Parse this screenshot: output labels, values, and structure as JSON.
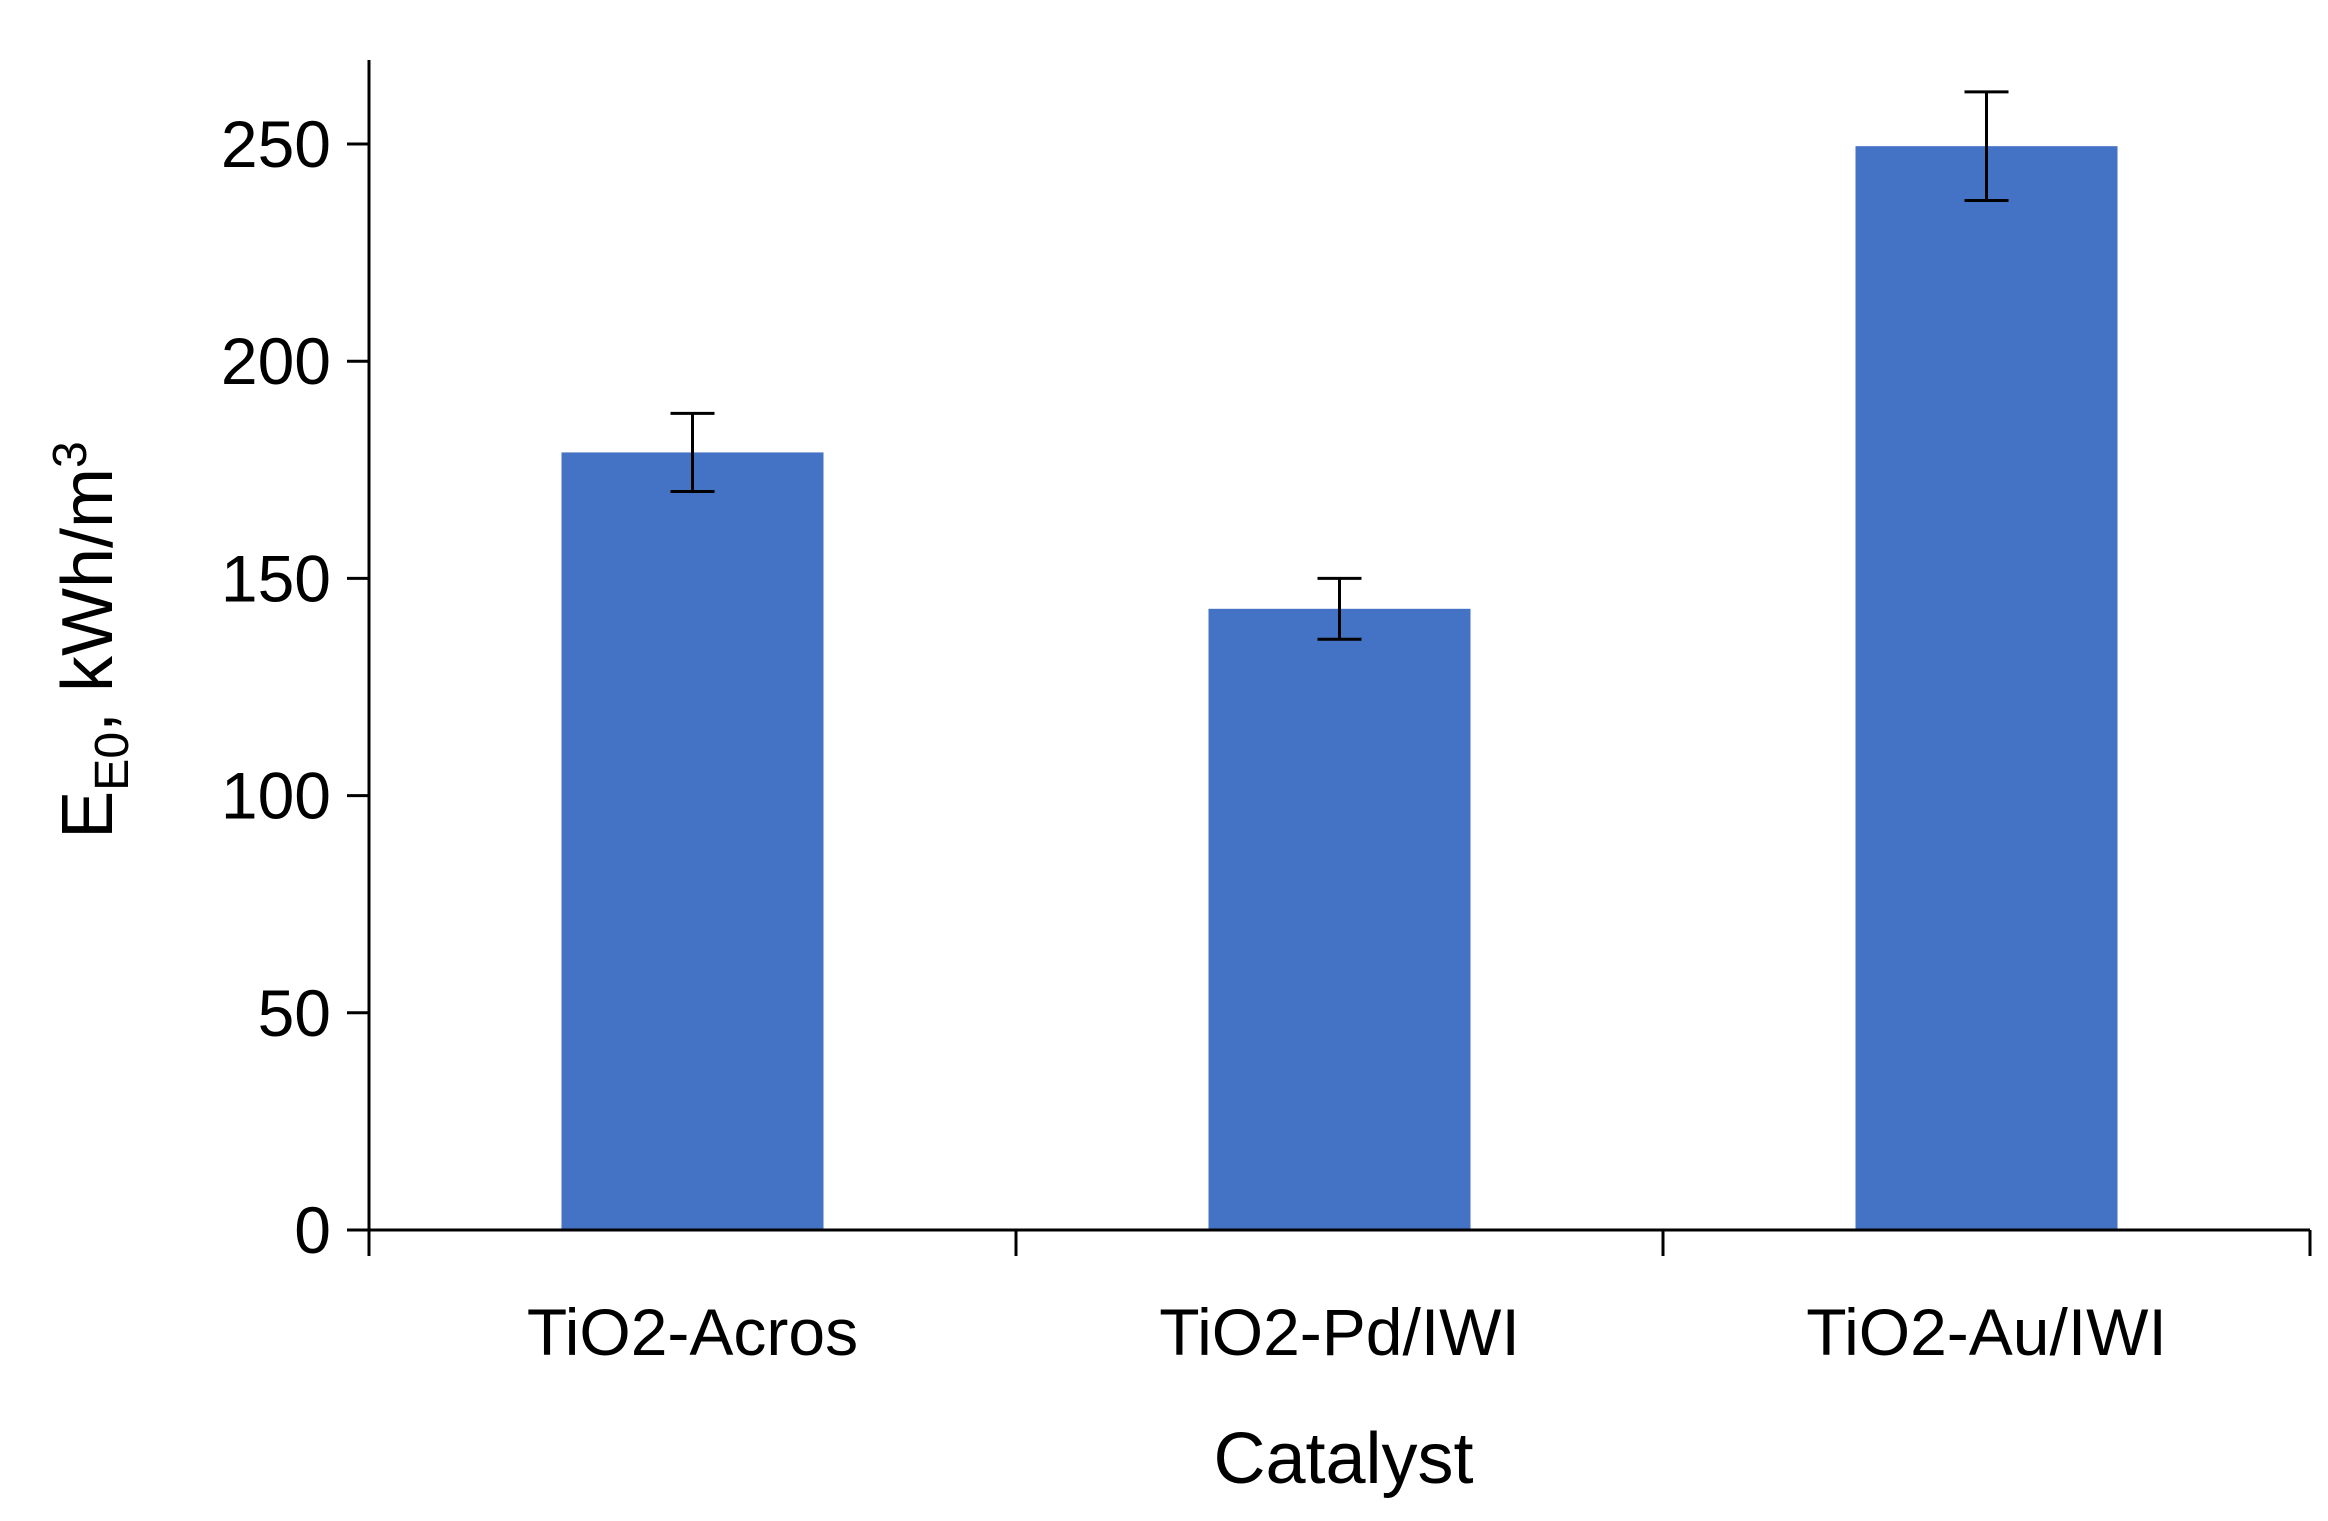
{
  "chart_data": {
    "type": "bar",
    "title": "",
    "xlabel": "Catalyst",
    "ylabel": {
      "main": "E",
      "subscript": "E0",
      "unit": ", kWh/m",
      "superscript": "3"
    },
    "categories": [
      "TiO2-Acros",
      "TiO2-Pd/IWI",
      "TiO2-Au/IWI"
    ],
    "values": [
      179,
      143,
      249.5
    ],
    "errors": [
      9,
      7,
      12.5
    ],
    "ylim": [
      0,
      270
    ],
    "yticks": [
      0,
      50,
      100,
      150,
      200,
      250
    ],
    "grid": false,
    "legend": "none",
    "colors": {
      "bar": "#4472C4",
      "axis": "#000000"
    }
  }
}
